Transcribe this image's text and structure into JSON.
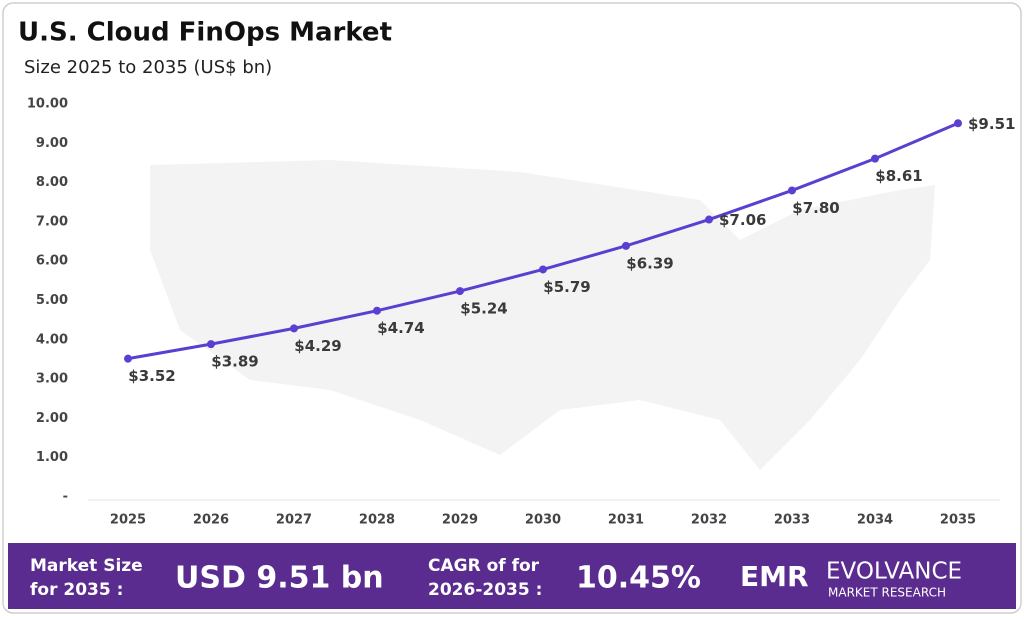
{
  "chart_data": {
    "type": "line",
    "title": "U.S. Cloud FinOps Market",
    "subtitle": "Size 2025 to 2035 (US$ bn)",
    "categories": [
      "2025",
      "2026",
      "2027",
      "2028",
      "2029",
      "2030",
      "2031",
      "2032",
      "2033",
      "2034",
      "2035"
    ],
    "series": [
      {
        "name": "U.S. Cloud FinOps Market",
        "color": "#5a3fd0",
        "values": [
          3.52,
          3.89,
          4.29,
          4.74,
          5.24,
          5.79,
          6.39,
          7.06,
          7.8,
          8.61,
          9.51
        ],
        "value_labels": [
          "$3.52",
          "$3.89",
          "$4.29",
          "$4.74",
          "$5.24",
          "$5.79",
          "$6.39",
          "$7.06",
          "$7.80",
          "$8.61",
          "$9.51"
        ]
      }
    ],
    "ylim": [
      0,
      10
    ],
    "yticks": [
      {
        "value": 0,
        "label": "-"
      },
      {
        "value": 1,
        "label": "1.00"
      },
      {
        "value": 2,
        "label": "2.00"
      },
      {
        "value": 3,
        "label": "3.00"
      },
      {
        "value": 4,
        "label": "4.00"
      },
      {
        "value": 5,
        "label": "5.00"
      },
      {
        "value": 6,
        "label": "6.00"
      },
      {
        "value": 7,
        "label": "7.00"
      },
      {
        "value": 8,
        "label": "8.00"
      },
      {
        "value": 9,
        "label": "9.00"
      },
      {
        "value": 10,
        "label": "10.00"
      }
    ],
    "grid": false
  },
  "footer": {
    "size_label": [
      "Market Size",
      "for 2035 :"
    ],
    "size_value": "USD 9.51 bn",
    "cagr_label": [
      "CAGR of for",
      "2026-2035 :"
    ],
    "cagr_value": "10.45%",
    "logo_mark": "EMR",
    "logo_name": "EVOLVANCE",
    "logo_tagline": "MARKET RESEARCH"
  }
}
